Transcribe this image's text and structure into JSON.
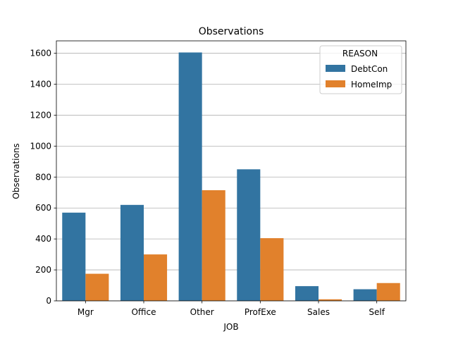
{
  "chart_data": {
    "type": "bar",
    "title": "Observations",
    "xlabel": "JOB",
    "ylabel": "Observations",
    "categories": [
      "Mgr",
      "Office",
      "Other",
      "ProfExe",
      "Sales",
      "Self"
    ],
    "series": [
      {
        "name": "DebtCon",
        "color": "#3274a1",
        "values": [
          570,
          620,
          1605,
          850,
          95,
          75
        ]
      },
      {
        "name": "HomeImp",
        "color": "#e1812c",
        "values": [
          175,
          300,
          715,
          405,
          10,
          115
        ]
      }
    ],
    "ylim": [
      0,
      1680
    ],
    "yticks": [
      0,
      200,
      400,
      600,
      800,
      1000,
      1200,
      1400,
      1600
    ],
    "grid": true,
    "legend": {
      "title": "REASON",
      "placement": "top-right"
    }
  }
}
